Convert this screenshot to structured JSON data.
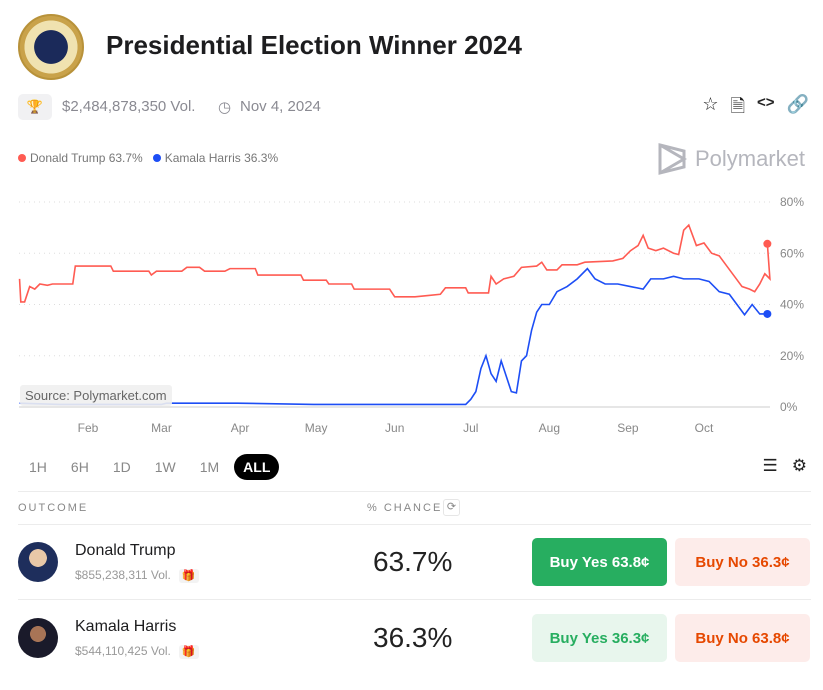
{
  "header": {
    "title": "Presidential Election Winner 2024",
    "volume": "$2,484,878,350 Vol.",
    "date": "Nov 4, 2024"
  },
  "legend": [
    {
      "label": "Donald Trump 63.7%",
      "color": "#ff5b52"
    },
    {
      "label": "Kamala Harris 36.3%",
      "color": "#1d4ef5"
    }
  ],
  "brand": "Polymarket",
  "source": "Source: Polymarket.com",
  "tabs": [
    "1H",
    "6H",
    "1D",
    "1W",
    "1M",
    "ALL"
  ],
  "table": {
    "outcome_header": "OUTCOME",
    "chance_header": "% CHANCE",
    "rows": [
      {
        "name": "Donald Trump",
        "volume": "$855,238,311 Vol.",
        "chance": "63.7%",
        "buy_yes": "Buy Yes 63.8¢",
        "buy_no": "Buy No 36.3¢"
      },
      {
        "name": "Kamala Harris",
        "volume": "$544,110,425 Vol.",
        "chance": "36.3%",
        "buy_yes": "Buy Yes 36.3¢",
        "buy_no": "Buy No 63.8¢"
      }
    ]
  },
  "chart_data": {
    "type": "line",
    "x_unit": "day of year 2024",
    "xticks": [
      {
        "label": "Feb",
        "day": 31
      },
      {
        "label": "Mar",
        "day": 60
      },
      {
        "label": "Apr",
        "day": 91
      },
      {
        "label": "May",
        "day": 121
      },
      {
        "label": "Jun",
        "day": 152
      },
      {
        "label": "Jul",
        "day": 182
      },
      {
        "label": "Aug",
        "day": 213
      },
      {
        "label": "Sep",
        "day": 244
      },
      {
        "label": "Oct",
        "day": 274
      }
    ],
    "yticks": [
      {
        "label": "0%",
        "v": 0
      },
      {
        "label": "20%",
        "v": 20
      },
      {
        "label": "40%",
        "v": 40
      },
      {
        "label": "60%",
        "v": 60
      },
      {
        "label": "80%",
        "v": 80
      }
    ],
    "ylim": [
      0,
      80
    ],
    "xlim": [
      4,
      299
    ],
    "series": [
      {
        "name": "Donald Trump",
        "color": "#ff5b52",
        "points": [
          [
            4,
            50
          ],
          [
            4.5,
            41
          ],
          [
            6,
            41
          ],
          [
            8,
            47
          ],
          [
            10,
            46
          ],
          [
            12,
            48
          ],
          [
            15,
            47.5
          ],
          [
            17,
            48
          ],
          [
            25,
            48
          ],
          [
            26,
            55
          ],
          [
            40,
            55
          ],
          [
            41,
            53
          ],
          [
            55,
            53
          ],
          [
            56,
            51.5
          ],
          [
            58,
            53
          ],
          [
            68,
            53
          ],
          [
            70,
            54.5
          ],
          [
            75,
            54.5
          ],
          [
            77,
            53
          ],
          [
            85,
            53
          ],
          [
            87,
            54
          ],
          [
            97,
            54
          ],
          [
            98,
            51.5
          ],
          [
            115,
            51.5
          ],
          [
            116,
            49.5
          ],
          [
            125,
            49.5
          ],
          [
            126,
            48
          ],
          [
            135,
            48
          ],
          [
            136,
            46
          ],
          [
            150,
            46
          ],
          [
            152,
            43
          ],
          [
            160,
            43
          ],
          [
            165,
            43.5
          ],
          [
            170,
            44
          ],
          [
            172,
            46.5
          ],
          [
            180,
            46.5
          ],
          [
            181,
            44.5
          ],
          [
            189,
            44.5
          ],
          [
            190,
            51
          ],
          [
            192,
            48
          ],
          [
            195,
            50
          ],
          [
            199,
            51
          ],
          [
            202,
            54.5
          ],
          [
            208,
            55
          ],
          [
            210,
            56.5
          ],
          [
            212,
            53.5
          ],
          [
            216,
            53.5
          ],
          [
            218,
            55.5
          ],
          [
            224,
            55.5
          ],
          [
            227,
            56.5
          ],
          [
            238,
            57
          ],
          [
            242,
            58
          ],
          [
            245,
            61
          ],
          [
            248,
            63
          ],
          [
            250,
            67
          ],
          [
            252,
            62
          ],
          [
            255,
            61
          ],
          [
            258,
            62
          ],
          [
            262,
            60
          ],
          [
            264,
            59.5
          ],
          [
            266,
            69
          ],
          [
            268,
            71
          ],
          [
            271,
            63
          ],
          [
            274,
            64
          ],
          [
            277,
            60
          ],
          [
            280,
            59
          ],
          [
            283,
            55
          ],
          [
            286,
            51
          ],
          [
            289,
            47
          ],
          [
            292,
            46
          ],
          [
            294,
            45
          ],
          [
            296,
            48
          ],
          [
            298,
            52
          ],
          [
            300,
            50
          ]
        ]
      },
      {
        "name": "Kamala Harris",
        "color": "#1d4ef5",
        "points": []
      }
    ]
  }
}
